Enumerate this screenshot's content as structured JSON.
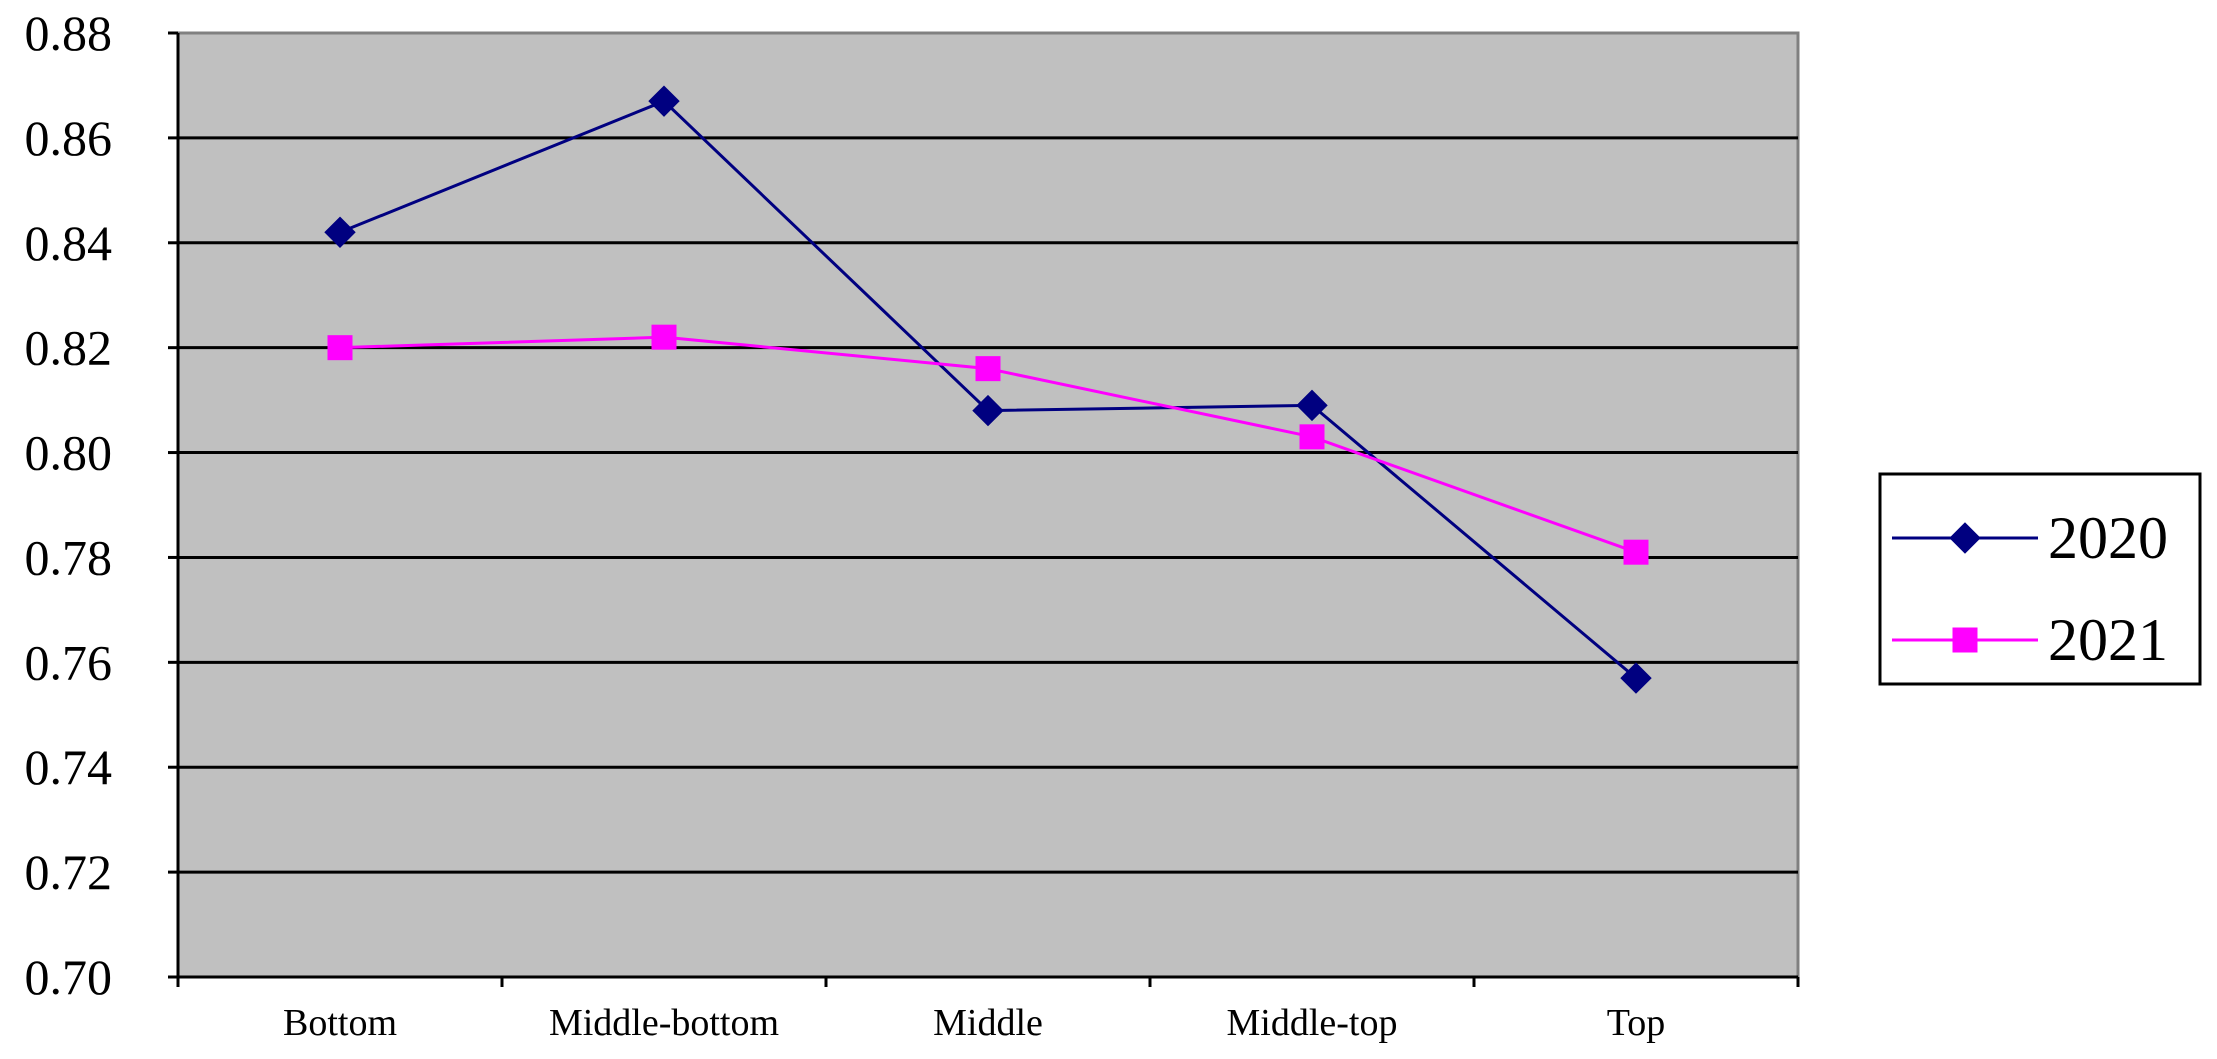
{
  "chart_data": {
    "type": "line",
    "title": "",
    "xlabel": "",
    "ylabel": "",
    "categories": [
      "Bottom",
      "Middle-bottom",
      "Middle",
      "Middle-top",
      "Top"
    ],
    "ylim": [
      0.7,
      0.88
    ],
    "yticks": [
      "0.70",
      "0.72",
      "0.74",
      "0.76",
      "0.78",
      "0.80",
      "0.82",
      "0.84",
      "0.86",
      "0.88"
    ],
    "grid": true,
    "legend_position": "right",
    "plot_background": "#C0C0C0",
    "series": [
      {
        "name": "2020",
        "values": [
          0.842,
          0.867,
          0.808,
          0.809,
          0.757
        ],
        "color": "#000080",
        "marker": "diamond"
      },
      {
        "name": "2021",
        "values": [
          0.82,
          0.822,
          0.816,
          0.803,
          0.781
        ],
        "color": "#FF00FF",
        "marker": "square"
      }
    ]
  }
}
